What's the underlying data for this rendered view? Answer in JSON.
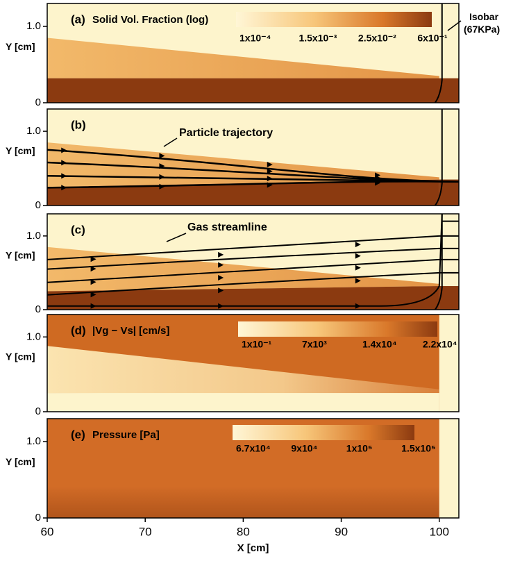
{
  "figure": {
    "x_label": "X [cm]",
    "y_label": "Y [cm]",
    "xlim": [
      60,
      102
    ],
    "xticks": [
      60,
      70,
      80,
      90,
      100
    ],
    "ylim": [
      0,
      1.3
    ],
    "yticks": [
      0,
      {
        "value": 1.0,
        "label": "1.0"
      }
    ],
    "panels": [
      {
        "label": "(a)",
        "title": "Solid Vol. Fraction (log)",
        "colorbar": [
          "1x10⁻⁴",
          "1.5x10⁻³",
          "2.5x10⁻²",
          "6x10⁻¹"
        ],
        "annotation": "Isobar (67KPa)"
      },
      {
        "label": "(b)",
        "annotation": "Particle trajectory"
      },
      {
        "label": "(c)",
        "annotation": "Gas streamline"
      },
      {
        "label": "(d)",
        "title": "|Vg − Vs| [cm/s]",
        "colorbar": [
          "1x10⁻¹",
          "7x10³",
          "1.4x10⁴",
          "2.2x10⁴"
        ]
      },
      {
        "label": "(e)",
        "title": "Pressure [Pa]",
        "colorbar": [
          "6.7x10⁴",
          "9x10⁴",
          "1x10⁵",
          "1.5x10⁵"
        ]
      }
    ]
  }
}
